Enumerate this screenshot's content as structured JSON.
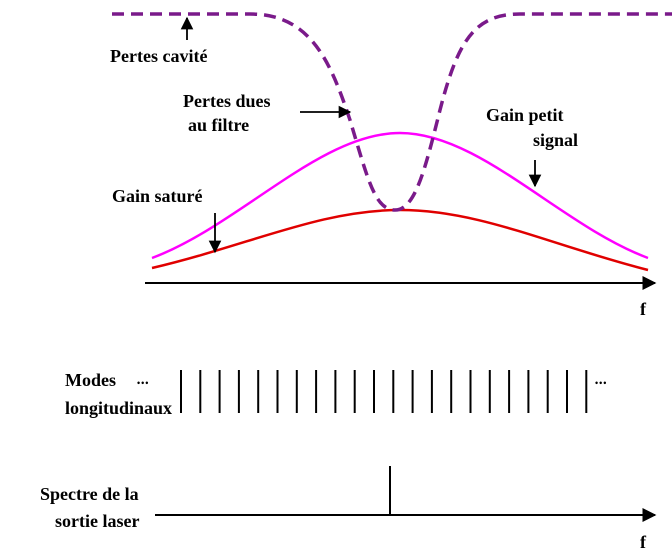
{
  "labels": {
    "pertes_cavite": "Pertes cavité",
    "pertes_filtre": [
      "Pertes dues",
      "au filtre"
    ],
    "gain_petit_signal": [
      "Gain petit",
      "signal"
    ],
    "gain_sature": "Gain saturé",
    "axis_f_top": "f",
    "modes": [
      "Modes",
      "longitudinaux"
    ],
    "ellipsis_left": "•••",
    "ellipsis_right": "•••",
    "spectre": [
      "Spectre de la",
      "sortie laser"
    ],
    "axis_f_bottom": "f"
  }
}
